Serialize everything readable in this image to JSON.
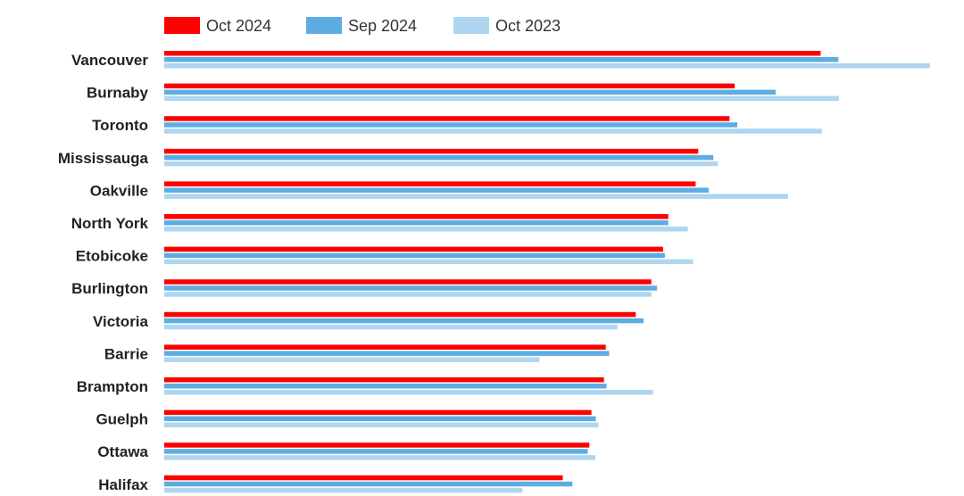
{
  "chart_data": {
    "type": "bar",
    "orientation": "horizontal",
    "categories": [
      "Vancouver",
      "Burnaby",
      "Toronto",
      "Mississauga",
      "Oakville",
      "North York",
      "Etobicoke",
      "Burlington",
      "Victoria",
      "Barrie",
      "Brampton",
      "Guelph",
      "Ottawa",
      "Halifax"
    ],
    "series": [
      {
        "name": "Oct 2024",
        "color": "#ff0000",
        "values": [
          2520,
          2190,
          2170,
          2050,
          2040,
          1935,
          1915,
          1870,
          1810,
          1695,
          1688,
          1640,
          1632,
          1530
        ]
      },
      {
        "name": "Sep 2024",
        "color": "#5dade2",
        "values": [
          2588,
          2347,
          2200,
          2108,
          2090,
          1935,
          1922,
          1892,
          1840,
          1708,
          1698,
          1657,
          1626,
          1567
        ]
      },
      {
        "name": "Oct 2023",
        "color": "#aed6f1",
        "values": [
          2940,
          2590,
          2525,
          2126,
          2395,
          2010,
          2030,
          1870,
          1740,
          1440,
          1876,
          1667,
          1655,
          1375
        ]
      }
    ],
    "xlim": [
      0,
      2940
    ],
    "legend_position": "top",
    "grid": false,
    "title": "",
    "xlabel": "",
    "ylabel": ""
  }
}
